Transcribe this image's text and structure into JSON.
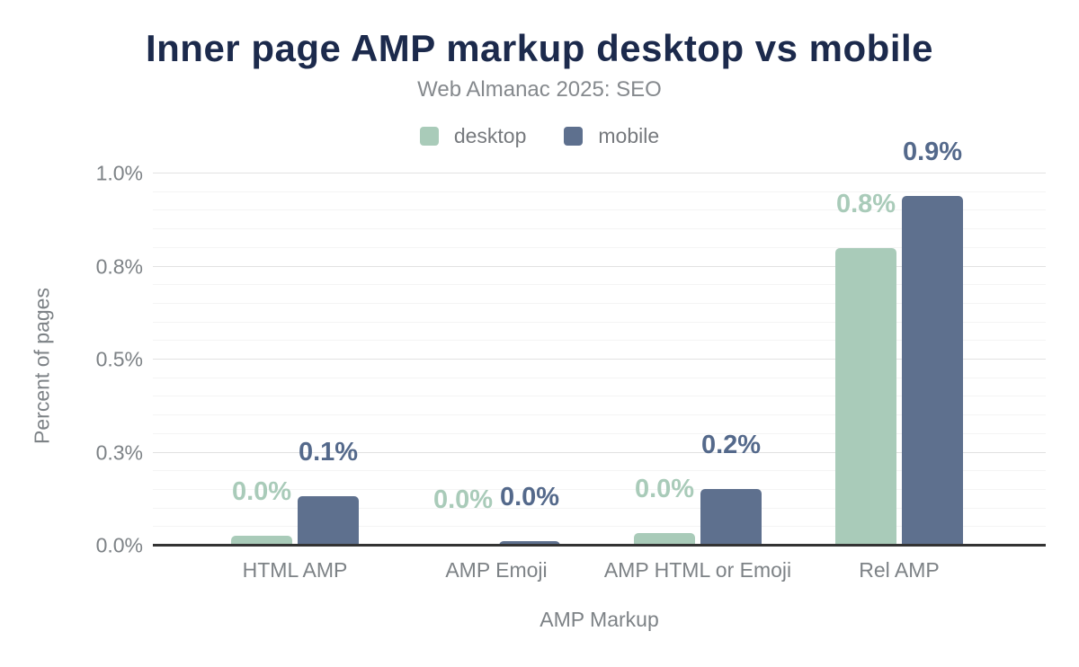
{
  "chart_data": {
    "type": "bar",
    "title": "Inner page AMP markup desktop vs mobile",
    "subtitle": "Web Almanac 2025: SEO",
    "xlabel": "AMP Markup",
    "ylabel": "Percent of pages",
    "categories": [
      "HTML AMP",
      "AMP Emoji",
      "AMP HTML or Emoji",
      "Rel AMP"
    ],
    "series": [
      {
        "name": "desktop",
        "color": "#a9cbb9",
        "label_color": "#a9cbb9",
        "values": [
          0.027,
          0.006,
          0.034,
          0.8
        ],
        "labels": [
          "0.0%",
          "0.0%",
          "0.0%",
          "0.8%"
        ]
      },
      {
        "name": "mobile",
        "color": "#5e708e",
        "label_color": "#54698b",
        "values": [
          0.133,
          0.013,
          0.152,
          0.94
        ],
        "labels": [
          "0.1%",
          "0.0%",
          "0.2%",
          "0.9%"
        ]
      }
    ],
    "ylim": [
      0,
      1.0
    ],
    "yticks": [
      {
        "value": 0,
        "label": "0.0%"
      },
      {
        "value": 0.25,
        "label": "0.3%"
      },
      {
        "value": 0.5,
        "label": "0.5%"
      },
      {
        "value": 0.75,
        "label": "0.8%"
      },
      {
        "value": 1.0,
        "label": "1.0%"
      }
    ],
    "minor_grid_step": 0.05,
    "grid": true,
    "legend_position": "top",
    "unit": "%"
  },
  "colors": {
    "title_text": "#1c2a4c",
    "subtitle_text": "#85898d",
    "axis_text": "#7d8286",
    "legend_text": "#76797d",
    "axis_line": "#333333",
    "grid_major": "#e2e2e2",
    "grid_minor": "#f4f4f4",
    "background": "#ffffff",
    "desktop_bar": "#a9cbb9",
    "mobile_bar": "#5e708e"
  }
}
